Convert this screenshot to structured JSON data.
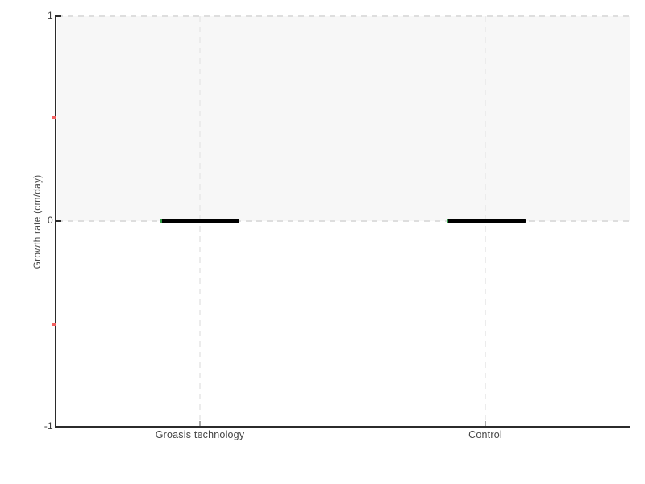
{
  "chart_data": {
    "type": "boxplot",
    "title": "",
    "xlabel": "",
    "ylabel": "Growth rate (cm/day)",
    "categories": [
      "Groasis technology",
      "Control"
    ],
    "series": [
      {
        "name": "Growth rate (cm/day)",
        "values": [
          0,
          0
        ]
      }
    ],
    "boxes": [
      {
        "category": "Groasis technology",
        "min": 0,
        "q1": 0,
        "median": 0,
        "q3": 0,
        "max": 0
      },
      {
        "category": "Control",
        "min": 0,
        "q1": 0,
        "median": 0,
        "q3": 0,
        "max": 0
      }
    ],
    "ylim": [
      -1,
      1
    ],
    "yticks_major": [
      "1",
      "0",
      "-1"
    ],
    "yticks_minor": [
      0.5,
      -0.5
    ],
    "shaded_band": {
      "from": 0,
      "to": 1,
      "fill": "#f7f7f7"
    },
    "grid": "dashed horizontal lines at y=0 and y=1; dashed vertical line at each category",
    "legend": "none"
  },
  "colors": {
    "axis": "#2b2b2b",
    "bar": "#000000",
    "bar_accent": "#2f9e44",
    "minor_tick": "#f26060",
    "band_fill": "#f7f7f7",
    "gridline": "#dedede",
    "text": "#454545"
  }
}
